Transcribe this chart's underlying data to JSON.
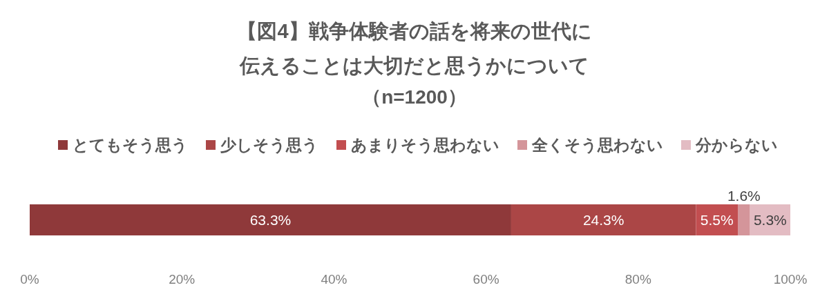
{
  "chart_data": {
    "type": "bar",
    "orientation": "horizontal",
    "stacked": true,
    "title": "【図4】戦争体験者の話を将来の世代に伝えることは大切だと思うかについて",
    "subtitle": "（n=1200）",
    "categories": [
      null
    ],
    "series": [
      {
        "name": "とてもそう思う",
        "color": "#8f393a",
        "values": [
          63.3
        ],
        "value_labels": [
          "63.3%"
        ]
      },
      {
        "name": "少しそう思う",
        "color": "#ab4646",
        "values": [
          24.3
        ],
        "value_labels": [
          "24.3%"
        ]
      },
      {
        "name": "あまりそう思わない",
        "color": "#c24e50",
        "values": [
          5.5
        ],
        "value_labels": [
          "5.5%"
        ]
      },
      {
        "name": "全くそう思わない",
        "color": "#d4959a",
        "values": [
          1.6
        ],
        "value_labels": [
          "1.6%"
        ]
      },
      {
        "name": "分からない",
        "color": "#e3bcc3",
        "values": [
          5.3
        ],
        "value_labels": [
          "5.3%"
        ]
      }
    ],
    "xlim": [
      0,
      100
    ],
    "xticks": [
      {
        "value": 0,
        "label": "0%"
      },
      {
        "value": 20,
        "label": "20%"
      },
      {
        "value": 40,
        "label": "40%"
      },
      {
        "value": 60,
        "label": "60%"
      },
      {
        "value": 80,
        "label": "80%"
      },
      {
        "value": 100,
        "label": "100%"
      }
    ],
    "legend": "top"
  }
}
